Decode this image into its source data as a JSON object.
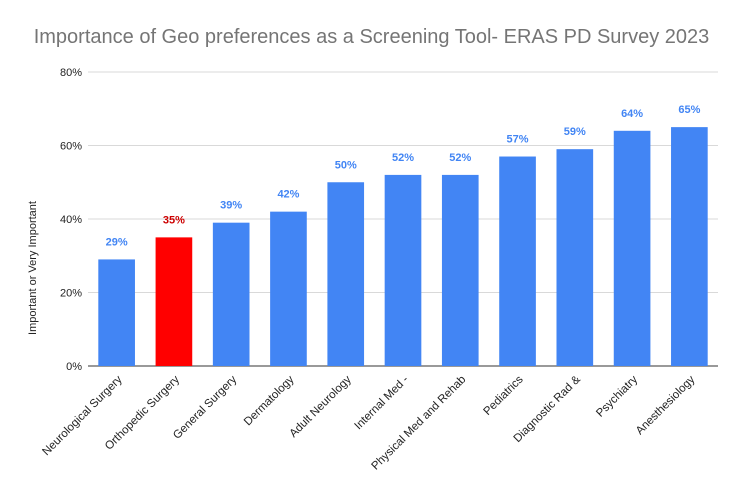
{
  "chart_data": {
    "type": "bar",
    "title": "Importance of Geo preferences as a Screening Tool- ERAS PD Survey 2023",
    "xlabel": "",
    "ylabel": "Important or Very Important",
    "ylim": [
      0,
      80
    ],
    "yticks": [
      "0%",
      "20%",
      "40%",
      "60%",
      "80%"
    ],
    "grid": true,
    "legend": "none",
    "categories": [
      "Neurological Surgery",
      "Orthopedic Surgery",
      "General Surgery",
      "Dermatology",
      "Adult Neurology",
      "Internal Med -",
      "Physical Med and Rehab",
      "Pediatrics",
      "Diagnostic Rad &",
      "Psychiatry",
      "Anesthesiology"
    ],
    "values": [
      29,
      35,
      39,
      42,
      50,
      52,
      52,
      57,
      59,
      64,
      65
    ],
    "data_labels": [
      "29%",
      "35%",
      "39%",
      "42%",
      "50%",
      "52%",
      "52%",
      "57%",
      "59%",
      "64%",
      "65%"
    ],
    "colors": {
      "default_bar": "#4285f4",
      "highlight_bar": "#ff0000",
      "default_label": "#4285f4",
      "highlight_label": "#cc0000",
      "gridline": "#d9d9d9"
    },
    "highlight_index": 1
  }
}
